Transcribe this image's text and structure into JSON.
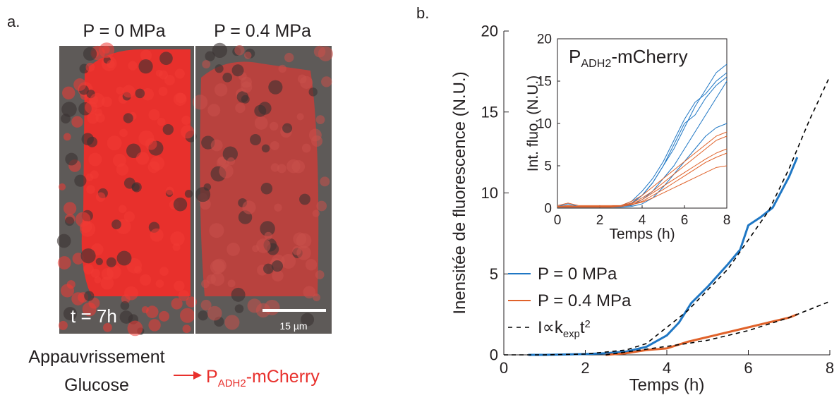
{
  "panel_a": {
    "label": "a.",
    "left_title": "P = 0 MPa",
    "right_title": "P = 0.4 MPa",
    "time": "t = 7h",
    "scale_bar": "15 µm",
    "caption_1": "Appauvrissement",
    "caption_2": "Glucose",
    "product_parts": [
      "P",
      "ADH2",
      "-mCherry"
    ]
  },
  "chart_data": [
    {
      "type": "line",
      "panel_label": "b.",
      "x_label": "Temps (h)",
      "y_label": "Inensitée de fluorescence (N.U.)",
      "xlim": [
        0,
        8
      ],
      "ylim": [
        0,
        20
      ],
      "xticks": [
        0,
        2,
        4,
        6,
        8
      ],
      "yticks": [
        0,
        5,
        10,
        15,
        20
      ],
      "legend": "lower-left",
      "series": [
        {
          "name": "P = 0 MPa",
          "color": "#1f77c4",
          "width": 3,
          "x": [
            0.6,
            1,
            2,
            2.5,
            3,
            3.5,
            4,
            4.3,
            4.6,
            5,
            5.5,
            5.8,
            6,
            6.3,
            6.6,
            7,
            7.2
          ],
          "values": [
            0,
            0,
            0.05,
            0.1,
            0.2,
            0.5,
            1.2,
            2,
            3.2,
            4.2,
            5.6,
            6.5,
            8,
            8.5,
            9.1,
            11,
            12.2
          ]
        },
        {
          "name": "P = 0.4 MPa",
          "color": "#e0622a",
          "width": 3,
          "x": [
            2.5,
            3,
            3.5,
            4,
            4.5,
            5,
            5.5,
            6,
            6.5,
            7,
            7.2
          ],
          "values": [
            0,
            0.1,
            0.3,
            0.4,
            0.8,
            1.1,
            1.4,
            1.7,
            2,
            2.3,
            2.5
          ]
        },
        {
          "name": "I",
          "name_parts": [
            "∝k",
            "exp",
            "t",
            "2"
          ],
          "color": "#000000",
          "width": 1.6,
          "dash": true,
          "x": [
            0,
            1,
            2,
            3,
            3.5,
            4,
            4.5,
            5,
            5.5,
            6,
            6.5,
            7,
            7.5,
            8
          ],
          "values": [
            0,
            0,
            0.05,
            0.3,
            0.7,
            1.7,
            2.7,
            4,
            5.3,
            7.1,
            8.9,
            11.5,
            14.5,
            17.2
          ]
        },
        {
          "color": "#000000",
          "width": 1.6,
          "dash": true,
          "x": [
            2.5,
            4.5,
            5,
            6,
            7,
            8
          ],
          "values": [
            0,
            0.7,
            0.9,
            1.5,
            2.3,
            3.3
          ]
        }
      ]
    },
    {
      "type": "line",
      "title_parts": [
        "P",
        "ADH2",
        "-mCherry"
      ],
      "x_label": "Temps (h)",
      "y_label": "Int. fluo. (N.U.)",
      "xlim": [
        0,
        8
      ],
      "ylim": [
        0,
        20
      ],
      "xticks": [
        0,
        2,
        4,
        6,
        8
      ],
      "yticks": [
        0,
        5,
        10,
        15,
        20
      ],
      "x": [
        0,
        0.5,
        1,
        1.5,
        2,
        2.5,
        3,
        3.5,
        4,
        4.5,
        5,
        5.5,
        6,
        6.5,
        7,
        7.5,
        8
      ],
      "series": [
        {
          "color": "#1f77c4",
          "width": 1,
          "values": [
            0.2,
            0.5,
            0.2,
            0.2,
            0.2,
            0.2,
            0.3,
            0.6,
            1.5,
            3,
            5,
            7,
            9.5,
            12,
            14,
            16,
            17
          ]
        },
        {
          "color": "#1f77c4",
          "width": 1,
          "values": [
            0.2,
            0.3,
            0.2,
            0.2,
            0.2,
            0.2,
            0.3,
            0.8,
            2,
            3.5,
            5.5,
            8,
            10.5,
            12.5,
            13.5,
            15,
            16
          ]
        },
        {
          "color": "#1f77c4",
          "width": 1,
          "values": [
            0.2,
            0.2,
            0.2,
            0.2,
            0.2,
            0.2,
            0.2,
            0.5,
            1.5,
            3,
            5,
            7.5,
            10,
            11,
            13,
            14.5,
            15.5
          ]
        },
        {
          "color": "#1f77c4",
          "width": 1,
          "values": [
            0.2,
            0.2,
            0.2,
            0.2,
            0.2,
            0.2,
            0.2,
            0.3,
            1,
            2,
            3.5,
            5,
            7,
            9,
            11,
            13,
            15
          ]
        },
        {
          "color": "#1f77c4",
          "width": 1,
          "values": [
            0.1,
            0.1,
            0.1,
            0.1,
            0.1,
            0.1,
            0.1,
            0.2,
            0.5,
            1.2,
            2.5,
            4,
            5.5,
            7,
            8.5,
            9.5,
            10
          ]
        },
        {
          "color": "#e0622a",
          "width": 1,
          "values": [
            0.3,
            0.6,
            0.3,
            0.3,
            0.3,
            0.3,
            0.3,
            0.8,
            1.5,
            2.5,
            3.5,
            4.5,
            5.5,
            6.5,
            7.5,
            8.5,
            9
          ]
        },
        {
          "color": "#e0622a",
          "width": 1,
          "values": [
            0.2,
            0.3,
            0.2,
            0.2,
            0.2,
            0.2,
            0.3,
            0.6,
            1.2,
            2,
            3,
            4,
            5,
            6,
            7,
            8,
            8.5
          ]
        },
        {
          "color": "#e0622a",
          "width": 1,
          "values": [
            0.2,
            0.2,
            0.2,
            0.2,
            0.2,
            0.2,
            0.3,
            0.5,
            1,
            1.8,
            2.6,
            3.4,
            4.2,
            5,
            5.8,
            6.5,
            7
          ]
        },
        {
          "color": "#e0622a",
          "width": 1,
          "values": [
            0.2,
            0.2,
            0.2,
            0.2,
            0.2,
            0.2,
            0.2,
            0.4,
            0.8,
            1.5,
            2.2,
            3,
            3.8,
            4.6,
            5.4,
            6,
            6.5
          ]
        },
        {
          "color": "#e0622a",
          "width": 1,
          "values": [
            0.1,
            0.1,
            0.1,
            0.1,
            0.1,
            0.1,
            0.2,
            0.4,
            0.7,
            1.2,
            1.8,
            2.4,
            3,
            3.6,
            4.2,
            4.8,
            5
          ]
        }
      ]
    }
  ]
}
